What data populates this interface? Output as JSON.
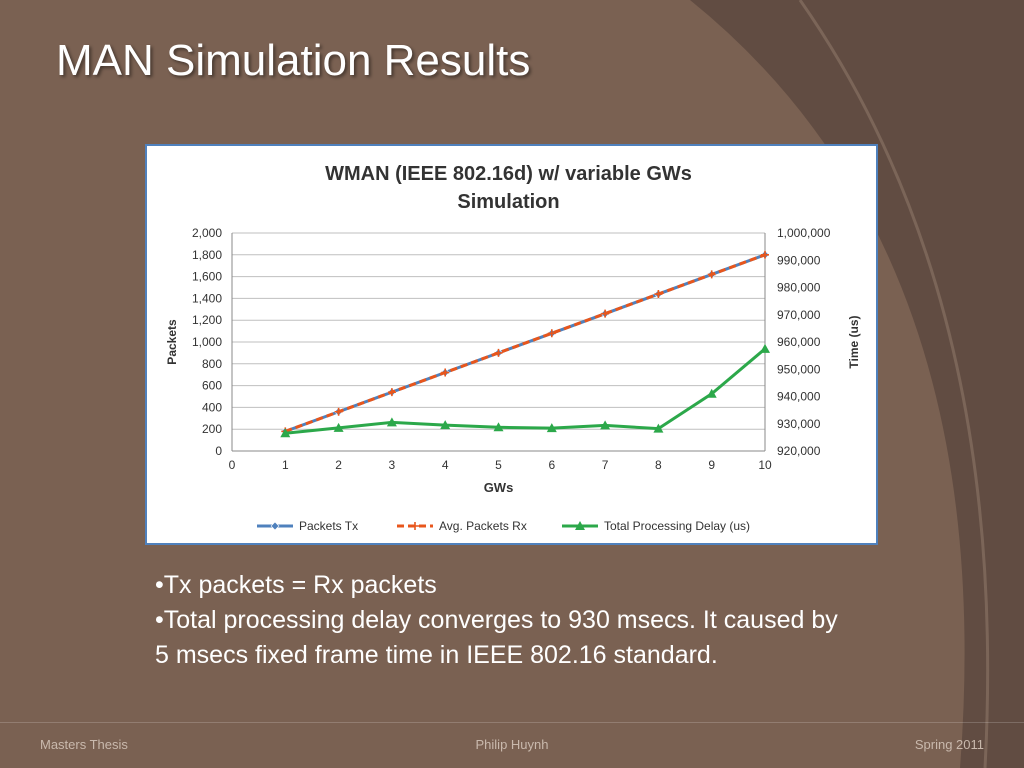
{
  "slide": {
    "title": "MAN Simulation Results",
    "bullets": [
      "•Tx packets = Rx packets",
      "•Total processing delay converges to 930 msecs. It caused by 5 msecs fixed frame time in IEEE 802.16 standard."
    ],
    "footer_left": "Masters Thesis",
    "footer_center": "Philip Huynh",
    "footer_right": "Spring 2011"
  },
  "colors": {
    "background": "#7a6152",
    "chart_border": "#4f81bd",
    "packets_tx": "#4f81bd",
    "avg_packets_rx": "#e8561c",
    "total_delay": "#2ca84a"
  },
  "chart_data": {
    "type": "line",
    "title_lines": [
      "WMAN (IEEE 802.16d) w/ variable GWs",
      "Simulation"
    ],
    "xlabel": "GWs",
    "ylabel": "Packets",
    "y2label": "Time (us)",
    "xlim": [
      0,
      10
    ],
    "ylim": [
      0,
      2000
    ],
    "y2lim": [
      920000,
      1000000
    ],
    "x_ticks": [
      "0",
      "1",
      "2",
      "3",
      "4",
      "5",
      "6",
      "7",
      "8",
      "9",
      "10"
    ],
    "y_ticks": [
      "0",
      "200",
      "400",
      "600",
      "800",
      "1,000",
      "1,200",
      "1,400",
      "1,600",
      "1,800",
      "2,000"
    ],
    "y2_ticks": [
      "920,000",
      "930,000",
      "940,000",
      "950,000",
      "960,000",
      "970,000",
      "980,000",
      "990,000",
      "1,000,000"
    ],
    "grid": true,
    "legend_position": "bottom",
    "x": [
      1,
      2,
      3,
      4,
      5,
      6,
      7,
      8,
      9,
      10
    ],
    "series": [
      {
        "name": "Packets Tx",
        "axis": "left",
        "values": [
          180,
          360,
          540,
          720,
          900,
          1080,
          1260,
          1440,
          1620,
          1800
        ]
      },
      {
        "name": "Avg. Packets Rx",
        "axis": "left",
        "values": [
          180,
          360,
          540,
          720,
          900,
          1080,
          1260,
          1440,
          1620,
          1800
        ]
      },
      {
        "name": "Total Processing Delay (us)",
        "axis": "right",
        "values": [
          926500,
          928500,
          930500,
          929500,
          928700,
          928400,
          929400,
          928200,
          941000,
          957500
        ]
      }
    ]
  }
}
